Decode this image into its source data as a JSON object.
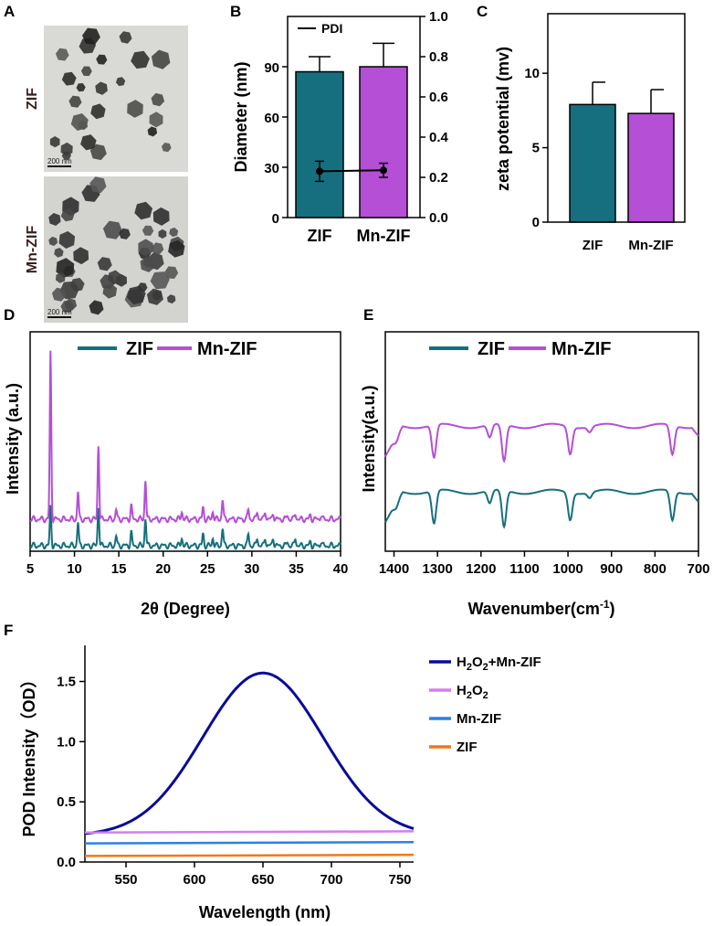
{
  "panels": {
    "a": "A",
    "b": "B",
    "c": "C",
    "d": "D",
    "e": "E",
    "f": "F"
  },
  "tem": {
    "top_label": "ZIF",
    "bottom_label": "Mn-ZIF",
    "scale_top": "200 nm",
    "scale_bottom": "200 nm"
  },
  "colors": {
    "zif": "#166f7f",
    "mnzif": "#b44fd6",
    "navy": "#0a0a9a",
    "h2o2": "#d47ef0",
    "mn": "#2a82e4",
    "orange": "#ef7a17"
  },
  "chart_data": [
    {
      "id": "B",
      "type": "bar",
      "categories": [
        "ZIF",
        "Mn-ZIF"
      ],
      "values": [
        87,
        90
      ],
      "errors": [
        9,
        14
      ],
      "ylabel": "Diameter (nm)",
      "ylim": [
        0,
        120
      ],
      "yticks": [
        0,
        30,
        60,
        90
      ],
      "y2lim": [
        0,
        1.0
      ],
      "y2ticks": [
        "0.0",
        "0.2",
        "0.4",
        "0.6",
        "0.8",
        "1.0"
      ],
      "pdi": {
        "name": "PDI",
        "values": [
          0.23,
          0.235
        ],
        "errors": [
          0.05,
          0.035
        ]
      }
    },
    {
      "id": "C",
      "type": "bar",
      "categories": [
        "ZIF",
        "Mn-ZIF"
      ],
      "values": [
        7.9,
        7.3
      ],
      "errors": [
        1.5,
        1.6
      ],
      "ylabel": "zeta potential (mv)",
      "ylim": [
        0,
        14
      ],
      "yticks": [
        0,
        5,
        10
      ]
    },
    {
      "id": "D",
      "type": "line",
      "xlabel": "2θ (Degree)",
      "ylabel": "Intensity (a.u.)",
      "xlim": [
        5,
        40
      ],
      "xticks": [
        5,
        10,
        15,
        20,
        25,
        30,
        35,
        40
      ],
      "series": [
        {
          "name": "ZIF",
          "offset": 0
        },
        {
          "name": "Mn-ZIF",
          "offset": 0.2
        }
      ],
      "peaks": [
        {
          "x": 7.3,
          "h": [
            0.2,
            0.85
          ]
        },
        {
          "x": 10.4,
          "h": [
            0.12,
            0.14
          ]
        },
        {
          "x": 12.7,
          "h": [
            0.2,
            0.38
          ]
        },
        {
          "x": 14.7,
          "h": [
            0.05,
            0.05
          ]
        },
        {
          "x": 16.4,
          "h": [
            0.07,
            0.07
          ]
        },
        {
          "x": 18.0,
          "h": [
            0.14,
            0.2
          ]
        },
        {
          "x": 22.1,
          "h": [
            0.04,
            0.04
          ]
        },
        {
          "x": 24.5,
          "h": [
            0.06,
            0.06
          ]
        },
        {
          "x": 25.6,
          "h": [
            0.04,
            0.04
          ]
        },
        {
          "x": 26.7,
          "h": [
            0.09,
            0.1
          ]
        },
        {
          "x": 29.6,
          "h": [
            0.06,
            0.05
          ]
        },
        {
          "x": 30.6,
          "h": [
            0.04,
            0.04
          ]
        },
        {
          "x": 31.5,
          "h": [
            0.04,
            0.04
          ]
        },
        {
          "x": 32.4,
          "h": [
            0.04,
            0.03
          ]
        },
        {
          "x": 34.0,
          "h": [
            0.02,
            0.02
          ]
        },
        {
          "x": 34.9,
          "h": [
            0.04,
            0.03
          ]
        },
        {
          "x": 36.6,
          "h": [
            0.02,
            0.02
          ]
        },
        {
          "x": 37.8,
          "h": [
            0.02,
            0.02
          ]
        }
      ]
    },
    {
      "id": "E",
      "type": "line",
      "xlabel": "Wavenumber(cm",
      "xlabel_sup": "-1",
      "xlabel_end": ")",
      "ylabel": "Intensity(a.u.)",
      "xlim": [
        1420,
        700
      ],
      "xticks": [
        1400,
        1300,
        1200,
        1100,
        1000,
        900,
        800,
        700
      ],
      "series": [
        {
          "name": "ZIF",
          "offset": 0
        },
        {
          "name": "Mn-ZIF",
          "offset": 1
        }
      ],
      "dips": [
        {
          "x": 1395,
          "d": 0.15
        },
        {
          "x": 1308,
          "d": 0.9
        },
        {
          "x": 1180,
          "d": 0.35
        },
        {
          "x": 1147,
          "d": 1.0
        },
        {
          "x": 995,
          "d": 0.75
        },
        {
          "x": 950,
          "d": 0.15
        },
        {
          "x": 760,
          "d": 0.8
        }
      ]
    },
    {
      "id": "F",
      "type": "line",
      "xlabel": "Wavelength (nm)",
      "ylabel": "POD Intensity（OD）",
      "xlim": [
        520,
        760
      ],
      "xticks": [
        550,
        600,
        650,
        700,
        750
      ],
      "ylim": [
        0,
        1.8
      ],
      "yticks": [
        "0.0",
        "0.5",
        "1.0",
        "1.5"
      ],
      "series": [
        {
          "name": "H2O2+Mn-ZIF",
          "peak_x": 650,
          "peak_y": 1.57,
          "base_y": 0.22
        },
        {
          "name": "H2O2",
          "start_y": 0.245,
          "end_y": 0.255
        },
        {
          "name": "Mn-ZIF",
          "start_y": 0.155,
          "end_y": 0.165
        },
        {
          "name": "ZIF",
          "start_y": 0.05,
          "end_y": 0.06
        }
      ],
      "legend": [
        {
          "base": "H",
          "sub1": "2",
          "mid": "O",
          "sub2": "2",
          "tail": "+Mn-ZIF"
        },
        {
          "base": "H",
          "sub1": "2",
          "mid": "O",
          "sub2": "2",
          "tail": ""
        },
        {
          "base": "Mn-ZIF",
          "sub1": "",
          "mid": "",
          "sub2": "",
          "tail": ""
        },
        {
          "base": "ZIF",
          "sub1": "",
          "mid": "",
          "sub2": "",
          "tail": ""
        }
      ]
    }
  ]
}
